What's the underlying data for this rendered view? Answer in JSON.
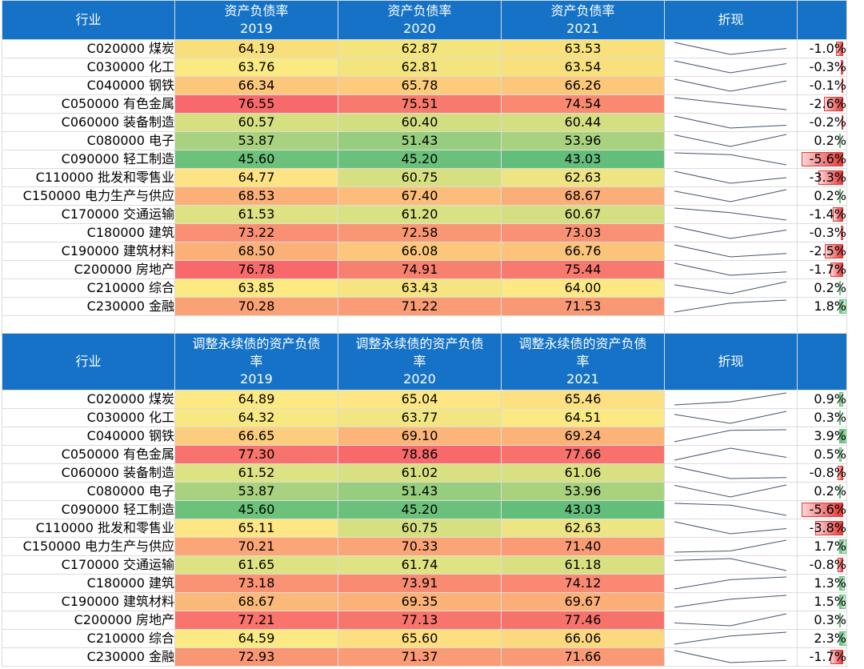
{
  "table1": {
    "header": {
      "industry": "行业",
      "col1": {
        "top": "资产负债率",
        "year": "2019"
      },
      "col2": {
        "top": "资产负债率",
        "year": "2020"
      },
      "col3": {
        "top": "资产负债率",
        "year": "2021"
      },
      "trend": "折现"
    },
    "rows": [
      {
        "industry": "C020000 煤炭",
        "v": [
          "64.19",
          "62.87",
          "63.53"
        ],
        "colors": [
          "#f9df7b",
          "#f4e47e",
          "#f8e17c"
        ],
        "pct": "-1.0%",
        "pv": -1.0
      },
      {
        "industry": "C030000 化工",
        "v": [
          "63.76",
          "62.81",
          "63.54"
        ],
        "colors": [
          "#fbe982",
          "#f4e47e",
          "#f8e17c"
        ],
        "pct": "-0.3%",
        "pv": -0.3
      },
      {
        "industry": "C040000 钢铁",
        "v": [
          "66.34",
          "65.78",
          "66.26"
        ],
        "colors": [
          "#fcc77b",
          "#fccb7c",
          "#fcc77b"
        ],
        "pct": "-0.1%",
        "pv": -0.1
      },
      {
        "industry": "C050000 有色金属",
        "v": [
          "76.55",
          "75.51",
          "74.54"
        ],
        "colors": [
          "#f8696b",
          "#f87a6e",
          "#f98a71"
        ],
        "pct": "-2.6%",
        "pv": -2.6
      },
      {
        "industry": "C060000 装备制造",
        "v": [
          "60.57",
          "60.40",
          "60.44"
        ],
        "colors": [
          "#d6e081",
          "#d2df81",
          "#d3df81"
        ],
        "pct": "-0.2%",
        "pv": -0.2
      },
      {
        "industry": "C080000 电子",
        "v": [
          "53.87",
          "51.43",
          "53.96"
        ],
        "colors": [
          "#a8d27f",
          "#97cd7e",
          "#a9d27f"
        ],
        "pct": "0.2%",
        "pv": 0.2
      },
      {
        "industry": "C090000 轻工制造",
        "v": [
          "45.60",
          "45.20",
          "43.03"
        ],
        "colors": [
          "#6dc27b",
          "#6bc17b",
          "#63be7b"
        ],
        "pct": "-5.6%",
        "pv": -5.6
      },
      {
        "industry": "C110000 批发和零售业",
        "v": [
          "64.77",
          "60.75",
          "62.63"
        ],
        "colors": [
          "#fde383",
          "#d6e081",
          "#ede583"
        ],
        "pct": "-3.3%",
        "pv": -3.3
      },
      {
        "industry": "C150000 电力生产与供应",
        "v": [
          "68.53",
          "67.40",
          "68.67"
        ],
        "colors": [
          "#fbb078",
          "#fcbd7a",
          "#fbae77"
        ],
        "pct": "0.2%",
        "pv": 0.2
      },
      {
        "industry": "C170000 交通运输",
        "v": [
          "61.53",
          "61.20",
          "60.67"
        ],
        "colors": [
          "#dee282",
          "#dae182",
          "#d5df81"
        ],
        "pct": "-1.4%",
        "pv": -1.4
      },
      {
        "industry": "C180000 建筑",
        "v": [
          "73.22",
          "72.58",
          "73.03"
        ],
        "colors": [
          "#f99073",
          "#f99674",
          "#f99274"
        ],
        "pct": "-0.3%",
        "pv": -0.3
      },
      {
        "industry": "C190000 建筑材料",
        "v": [
          "68.50",
          "66.08",
          "66.76"
        ],
        "colors": [
          "#fbb078",
          "#fcc77b",
          "#fcc37a"
        ],
        "pct": "-2.5%",
        "pv": -2.5
      },
      {
        "industry": "C200000 房地产",
        "v": [
          "76.78",
          "74.91",
          "75.44"
        ],
        "colors": [
          "#f8696b",
          "#f8806f",
          "#f87a6e"
        ],
        "pct": "-1.7%",
        "pv": -1.7
      },
      {
        "industry": "C210000 综合",
        "v": [
          "63.85",
          "63.43",
          "64.00"
        ],
        "colors": [
          "#fbe982",
          "#f6e480",
          "#fce983"
        ],
        "pct": "0.2%",
        "pv": 0.2
      },
      {
        "industry": "C230000 金融",
        "v": [
          "70.28",
          "71.22",
          "71.53"
        ],
        "colors": [
          "#faa276",
          "#f99b75",
          "#f99875"
        ],
        "pct": "1.8%",
        "pv": 1.8
      }
    ],
    "spark_series": [
      [
        64.19,
        62.87,
        63.53
      ],
      [
        63.76,
        62.81,
        63.54
      ],
      [
        66.34,
        65.78,
        66.26
      ],
      [
        76.55,
        75.51,
        74.54
      ],
      [
        60.57,
        60.4,
        60.44
      ],
      [
        53.87,
        51.43,
        53.96
      ],
      [
        45.6,
        45.2,
        43.03
      ],
      [
        64.77,
        60.75,
        62.63
      ],
      [
        68.53,
        67.4,
        68.67
      ],
      [
        61.53,
        61.2,
        60.67
      ],
      [
        73.22,
        72.58,
        73.03
      ],
      [
        68.5,
        66.08,
        66.76
      ],
      [
        76.78,
        74.91,
        75.44
      ],
      [
        63.85,
        63.43,
        64.0
      ],
      [
        70.28,
        71.22,
        71.53
      ]
    ]
  },
  "table2": {
    "header": {
      "industry": "行业",
      "col1": {
        "l1": "调整永续债的资产负债",
        "l2": "率",
        "year": "2019"
      },
      "col2": {
        "l1": "调整永续债的资产负债",
        "l2": "率",
        "year": "2020"
      },
      "col3": {
        "l1": "调整永续债的资产负债",
        "l2": "率",
        "year": "2021"
      },
      "trend": "折现"
    },
    "rows": [
      {
        "industry": "C020000 煤炭",
        "v": [
          "64.89",
          "65.04",
          "65.46"
        ],
        "colors": [
          "#fde983",
          "#fde683",
          "#fde082"
        ],
        "pct": "0.9%",
        "pv": 0.9
      },
      {
        "industry": "C030000 化工",
        "v": [
          "64.32",
          "63.77",
          "64.51"
        ],
        "colors": [
          "#f8e882",
          "#f1e682",
          "#fbe983"
        ],
        "pct": "0.3%",
        "pv": 0.3
      },
      {
        "industry": "C040000 钢铁",
        "v": [
          "66.65",
          "69.10",
          "69.24"
        ],
        "colors": [
          "#fccd7c",
          "#fbb578",
          "#fbb378"
        ],
        "pct": "3.9%",
        "pv": 3.9
      },
      {
        "industry": "C050000 有色金属",
        "v": [
          "77.30",
          "78.86",
          "77.66"
        ],
        "colors": [
          "#f8736d",
          "#f8696b",
          "#f8716c"
        ],
        "pct": "0.5%",
        "pv": 0.5
      },
      {
        "industry": "C060000 装备制造",
        "v": [
          "61.52",
          "61.02",
          "61.06"
        ],
        "colors": [
          "#dde282",
          "#d8e081",
          "#d8e081"
        ],
        "pct": "-0.8%",
        "pv": -0.8
      },
      {
        "industry": "C080000 电子",
        "v": [
          "53.87",
          "51.43",
          "53.96"
        ],
        "colors": [
          "#a8d27f",
          "#97cd7e",
          "#a9d27f"
        ],
        "pct": "0.2%",
        "pv": 0.2
      },
      {
        "industry": "C090000 轻工制造",
        "v": [
          "45.60",
          "45.20",
          "43.03"
        ],
        "colors": [
          "#6dc27b",
          "#6bc17b",
          "#63be7b"
        ],
        "pct": "-5.6%",
        "pv": -5.6
      },
      {
        "industry": "C110000 批发和零售业",
        "v": [
          "65.11",
          "60.75",
          "62.63"
        ],
        "colors": [
          "#fde683",
          "#d6e081",
          "#ede583"
        ],
        "pct": "-3.8%",
        "pv": -3.8
      },
      {
        "industry": "C150000 电力生产与供应",
        "v": [
          "70.21",
          "70.33",
          "71.40"
        ],
        "colors": [
          "#fba677",
          "#fba577",
          "#fa9b75"
        ],
        "pct": "1.7%",
        "pv": 1.7
      },
      {
        "industry": "C170000 交通运输",
        "v": [
          "61.65",
          "61.74",
          "61.18"
        ],
        "colors": [
          "#dfe282",
          "#e0e382",
          "#d9e081"
        ],
        "pct": "-0.8%",
        "pv": -0.8
      },
      {
        "industry": "C180000 建筑",
        "v": [
          "73.18",
          "73.91",
          "74.12"
        ],
        "colors": [
          "#f99374",
          "#f98b72",
          "#f98972"
        ],
        "pct": "1.3%",
        "pv": 1.3
      },
      {
        "industry": "C190000 建筑材料",
        "v": [
          "68.67",
          "69.35",
          "69.67"
        ],
        "colors": [
          "#fbb979",
          "#fbb278",
          "#fbae77"
        ],
        "pct": "1.5%",
        "pv": 1.5
      },
      {
        "industry": "C200000 房地产",
        "v": [
          "77.21",
          "77.13",
          "77.46"
        ],
        "colors": [
          "#f8746d",
          "#f8756d",
          "#f8726c"
        ],
        "pct": "0.3%",
        "pv": 0.3
      },
      {
        "industry": "C210000 综合",
        "v": [
          "64.59",
          "65.60",
          "66.06"
        ],
        "colors": [
          "#fbe983",
          "#fdde81",
          "#fcd87f"
        ],
        "pct": "2.3%",
        "pv": 2.3
      },
      {
        "industry": "C230000 金融",
        "v": [
          "72.93",
          "71.37",
          "71.66"
        ],
        "colors": [
          "#f99674",
          "#fa9b75",
          "#fa9975"
        ],
        "pct": "-1.7%",
        "pv": -1.7
      }
    ],
    "spark_series": [
      [
        64.89,
        65.04,
        65.46
      ],
      [
        64.32,
        63.77,
        64.51
      ],
      [
        66.65,
        69.1,
        69.24
      ],
      [
        77.3,
        78.86,
        77.66
      ],
      [
        61.52,
        61.02,
        61.06
      ],
      [
        53.87,
        51.43,
        53.96
      ],
      [
        45.6,
        45.2,
        43.03
      ],
      [
        65.11,
        60.75,
        62.63
      ],
      [
        70.21,
        70.33,
        71.4
      ],
      [
        61.65,
        61.74,
        61.18
      ],
      [
        73.18,
        73.91,
        74.12
      ],
      [
        68.67,
        69.35,
        69.67
      ],
      [
        77.21,
        77.13,
        77.46
      ],
      [
        64.59,
        65.6,
        66.06
      ],
      [
        72.93,
        71.37,
        71.66
      ]
    ]
  },
  "colors": {
    "header_bg": "#1572c6",
    "header_text": "#ffffff",
    "neg_bar": "#e23a3a",
    "pos_bar": "#63be7b",
    "sparkline": "#44546a"
  }
}
